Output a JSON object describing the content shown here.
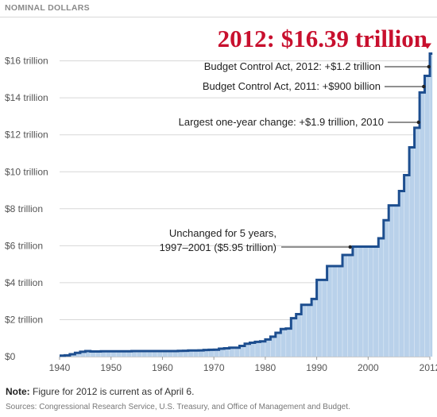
{
  "header": {
    "label": "NOMINAL DOLLARS"
  },
  "headline": {
    "value": "2012: $16.39 trillion"
  },
  "note": {
    "prefix": "Note:",
    "text": " Figure for 2012 is current as of April 6."
  },
  "sources": {
    "text": "Sources: Congressional Research Service, U.S. Treasury, and Office of Management and Budget."
  },
  "colors": {
    "line": "#1d4e8f",
    "fill": "#b9d1ea",
    "marker": "#c8102e",
    "grid": "#d7d7d7"
  },
  "chart_data": {
    "type": "area",
    "xlim": [
      1940,
      2012
    ],
    "ylim": [
      0,
      16.8
    ],
    "x_ticks": [
      1940,
      1950,
      1960,
      1970,
      1980,
      1990,
      2000,
      2012
    ],
    "x_tick_labels": [
      "1940",
      "1950",
      "1960",
      "1970",
      "1980",
      "1990",
      "2000",
      "2012"
    ],
    "y_ticks": [
      0,
      2,
      4,
      6,
      8,
      10,
      12,
      14,
      16
    ],
    "y_tick_labels": [
      "$0",
      "$2 trillion",
      "$4 trillion",
      "$6 trillion",
      "$8 trillion",
      "$10 trillion",
      "$12 trillion",
      "$14 trillion",
      "$16 trillion"
    ],
    "grid": true,
    "series": [
      {
        "step": true,
        "x": [
          1940,
          1941,
          1942,
          1943,
          1944,
          1945,
          1946,
          1947,
          1948,
          1949,
          1950,
          1951,
          1952,
          1953,
          1954,
          1955,
          1956,
          1957,
          1958,
          1959,
          1960,
          1961,
          1962,
          1963,
          1964,
          1965,
          1966,
          1967,
          1968,
          1969,
          1970,
          1971,
          1972,
          1973,
          1974,
          1975,
          1976,
          1977,
          1978,
          1979,
          1980,
          1981,
          1982,
          1983,
          1984,
          1985,
          1986,
          1987,
          1988,
          1989,
          1990,
          1991,
          1992,
          1993,
          1994,
          1995,
          1996,
          1997,
          1998,
          1999,
          2000,
          2001,
          2002,
          2003,
          2004,
          2005,
          2006,
          2007,
          2008,
          2009,
          2010,
          2011,
          2012
        ],
        "y": [
          0.05,
          0.07,
          0.13,
          0.2,
          0.26,
          0.3,
          0.28,
          0.28,
          0.29,
          0.29,
          0.29,
          0.29,
          0.29,
          0.29,
          0.3,
          0.3,
          0.3,
          0.3,
          0.3,
          0.3,
          0.3,
          0.3,
          0.3,
          0.31,
          0.32,
          0.33,
          0.33,
          0.34,
          0.36,
          0.37,
          0.38,
          0.43,
          0.45,
          0.48,
          0.48,
          0.58,
          0.7,
          0.75,
          0.8,
          0.83,
          0.93,
          1.08,
          1.29,
          1.49,
          1.52,
          2.08,
          2.3,
          2.8,
          2.8,
          3.12,
          4.15,
          4.15,
          4.9,
          4.9,
          4.9,
          5.5,
          5.5,
          5.95,
          5.95,
          5.95,
          5.95,
          5.95,
          6.4,
          7.38,
          8.18,
          8.18,
          8.96,
          9.82,
          11.32,
          12.38,
          14.29,
          15.19,
          16.39
        ]
      }
    ],
    "annotations": [
      {
        "text": "Budget Control Act, 2012: +$1.2 trillion",
        "x": 2011.8,
        "y": 16.0
      },
      {
        "text": "Budget Control Act, 2011: +$900 billion",
        "x": 2010.8,
        "y": 15.05
      },
      {
        "text": "Largest one-year change: +$1.9 trillion, 2010",
        "x": 2009.8,
        "y": 12.0
      },
      {
        "lines": [
          "Unchanged for 5 years,",
          "1997–2001 ($5.95 trillion)"
        ],
        "x": 1996.5,
        "y": 6.0
      }
    ]
  }
}
